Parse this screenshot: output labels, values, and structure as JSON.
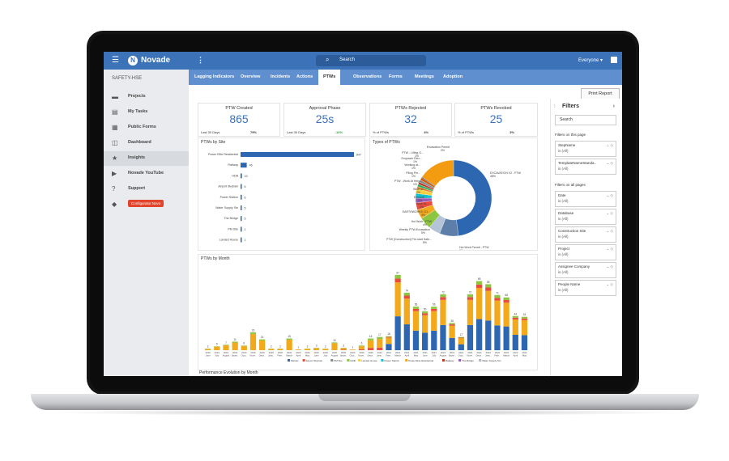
{
  "app": {
    "brand": "Novade",
    "search_label": "Search",
    "user_label": "Everyone ▾",
    "org": "SAFETY-HSE"
  },
  "sidebar": {
    "items": [
      {
        "label": "Projects",
        "icon": "▬"
      },
      {
        "label": "My Tasks",
        "icon": "▤"
      },
      {
        "label": "Public Forms",
        "icon": "▦"
      },
      {
        "label": "Dashboard",
        "icon": "◫"
      },
      {
        "label": "Insights",
        "icon": "★"
      },
      {
        "label": "Novade YouTube",
        "icon": "▶"
      },
      {
        "label": "Support",
        "icon": "?"
      },
      {
        "label": "Configurator.Nov4",
        "icon": "◆"
      }
    ]
  },
  "tabs": [
    "Lagging Indicators",
    "Overview",
    "Incidents",
    "Actions",
    "PTWs",
    "Observations",
    "Forms",
    "Meetings",
    "Adoption"
  ],
  "print_label": "Print Report",
  "kpis": [
    {
      "title": "PTW Created",
      "value": "865",
      "sub_label": "Last 30 Days",
      "sub_value": "79%",
      "sub_color": "#333333"
    },
    {
      "title": "Approval Phase",
      "value": "25s",
      "sub_label": "Last 30 Days",
      "sub_value": "-10%",
      "sub_color": "#2e9e3e"
    },
    {
      "title": "PTWs Rejected",
      "value": "32",
      "sub_label": "% of PTWs",
      "sub_value": "4%",
      "sub_color": "#333333"
    },
    {
      "title": "PTWs Revoked",
      "value": "25",
      "sub_label": "% of PTWs",
      "sub_value": "3%",
      "sub_color": "#333333"
    }
  ],
  "panels": {
    "site": "PTWs by Site",
    "types": "Types of PTWs",
    "month": "PTWs by Month",
    "perf": "Performance Evolution by Month"
  },
  "chart_data": [
    {
      "type": "bar",
      "title": "PTWs by Site",
      "orientation": "horizontal",
      "categories": [
        "Power Elite Residential",
        "Railway",
        "HDB",
        "Airport Skytrain",
        "Power Station",
        "Water Supply Stn",
        "The Bridge",
        "PM Site",
        "Landed House"
      ],
      "values": [
        847,
        46,
        10,
        6,
        6,
        5,
        5,
        1,
        1
      ]
    },
    {
      "type": "pie",
      "title": "Types of PTWs",
      "donut": true,
      "labels": [
        "EXCAVATION V2 - PTW",
        "Hot Work Permit - PTW",
        "PTW [Construction] Pre-start Safe...",
        "Weekly PTW-Excavation",
        "Hot Work - PTW",
        "EARTHWORKS CO...",
        "Work at...",
        "Excavati...",
        "Work at...",
        "PTW - Work At Heig...",
        "Piling Per...",
        "Working at...",
        "Empower Elec...",
        "PTW - Lifting O...",
        "Excavation Permit"
      ],
      "values": [
        48,
        8,
        5,
        5,
        4,
        3,
        2,
        2,
        2,
        1,
        1,
        1,
        1,
        1,
        0
      ],
      "percents": [
        "48%",
        "8%",
        "5%",
        "5%",
        "4%",
        "3%",
        "2%",
        "2%",
        "2%",
        "1%",
        "1%",
        "1%",
        "1%",
        "1%",
        "0%"
      ],
      "colors": [
        "#2d67b1",
        "#5c7ea8",
        "#b4c3d6",
        "#8cc63f",
        "#f2a91b",
        "#e94b3c",
        "#9b59b6",
        "#17becf",
        "#f4d03f",
        "#e67e22",
        "#27ae60",
        "#c0392b",
        "#7f8c8d",
        "#d35400",
        "#34495e"
      ]
    },
    {
      "type": "bar",
      "title": "PTWs by Month",
      "stacked": true,
      "categories": [
        "2019 June",
        "2019 July",
        "2019 August",
        "2019 Septe..",
        "2019 Octo..",
        "2019 Nove..",
        "2019 Dece..",
        "2020 Janu..",
        "2020 Febr..",
        "2020 March",
        "2020 April",
        "2020 May",
        "2020 June",
        "2020 July",
        "2020 August",
        "2020 Septe..",
        "2020 Octo..",
        "2020 Nove..",
        "2020 Dece..",
        "2021 Janu..",
        "2021 Febr..",
        "2021 March",
        "2021 April",
        "2021 May",
        "2021 June",
        "2021 July",
        "2021 August",
        "2021 Septe..",
        "2021 Octo..",
        "2021 Nove..",
        "2021 Dece..",
        "2022 Janu..",
        "2022 Febr..",
        "2022 March",
        "2022 April",
        "2022 May"
      ],
      "totals": [
        2,
        5,
        7,
        11,
        6,
        23,
        14,
        2,
        2,
        15,
        1,
        2,
        3,
        2,
        10,
        3,
        1,
        6,
        15,
        17,
        18,
        97,
        74,
        56,
        50,
        56,
        72,
        35,
        17,
        72,
        89,
        85,
        71,
        68,
        44,
        43
      ],
      "legend": [
        "Mozaic",
        "Airport Skytrain",
        "PM Site",
        "HDB",
        "Landed House",
        "Power Station",
        "Power Elite Residential",
        "Railway",
        "The Bridge",
        "Water Supply Stn"
      ],
      "legend_colors": [
        "#2d67b1",
        "#e94b3c",
        "#7f8c8d",
        "#8cc63f",
        "#f4d03f",
        "#17becf",
        "#f2a91b",
        "#c0392b",
        "#9b59b6",
        "#aab7c4"
      ]
    }
  ],
  "filters": {
    "title": "Filters",
    "search": "Search",
    "page_heading": "Filters on this page",
    "all_heading": "Filters on all pages",
    "page_items": [
      {
        "name": "StepName",
        "value": "is (All)"
      },
      {
        "name": "TemplateNameStanda..",
        "value": "is (All)"
      }
    ],
    "all_items": [
      {
        "name": "Date",
        "value": "is (All)"
      },
      {
        "name": "Database",
        "value": "is (All)"
      },
      {
        "name": "Construction Site",
        "value": "is (All)"
      },
      {
        "name": "Project",
        "value": "is (All)"
      },
      {
        "name": "Assignee Company",
        "value": "is (All)"
      },
      {
        "name": "People Name",
        "value": "is (All)"
      }
    ]
  }
}
